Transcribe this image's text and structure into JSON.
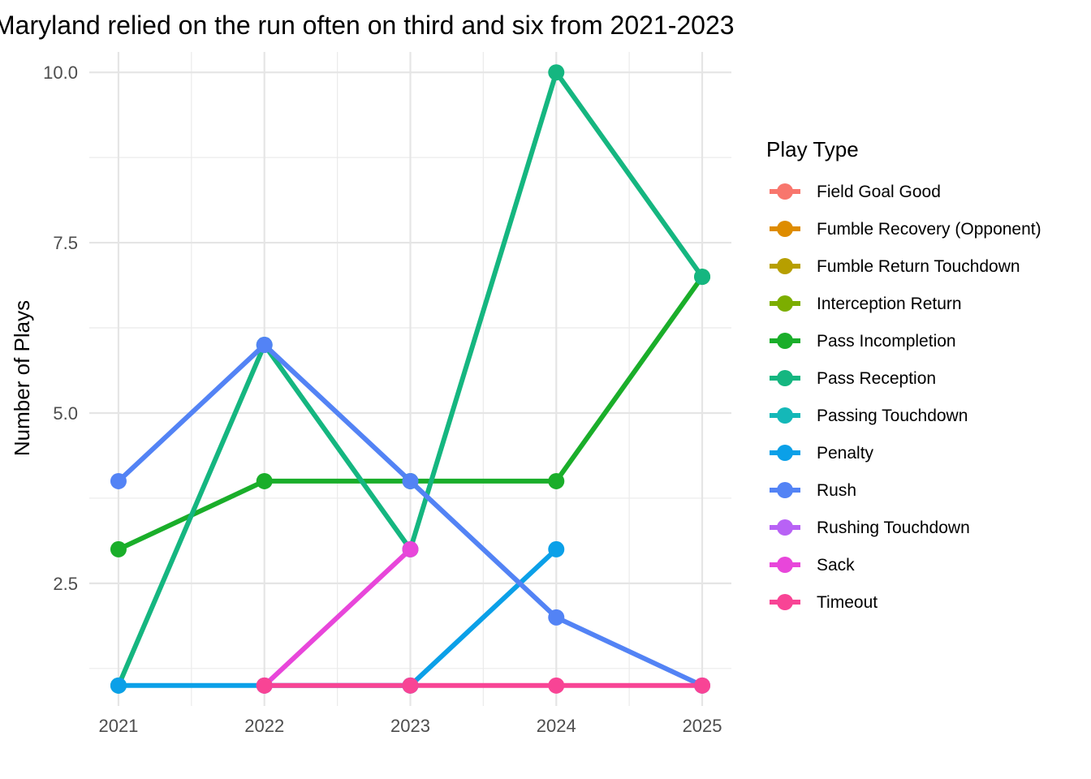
{
  "chart_data": {
    "type": "line",
    "title": "Maryland relied on the run often on third and six from 2021-2023",
    "xlabel": "",
    "ylabel": "Number of Plays",
    "x": [
      2021,
      2022,
      2023,
      2024,
      2025
    ],
    "x_tick_labels": [
      "2021",
      "2022",
      "2023",
      "2024",
      "2025"
    ],
    "y_ticks": [
      2.5,
      5.0,
      7.5,
      10.0
    ],
    "y_tick_labels": [
      "2.5",
      "5.0",
      "7.5",
      "10.0"
    ],
    "ylim": [
      0.7,
      10.3
    ],
    "grid": true,
    "legend": {
      "title": "Play Type",
      "placement": "right",
      "entries": [
        {
          "name": "Field Goal Good",
          "color": "#F8766D"
        },
        {
          "name": "Fumble Recovery (Opponent)",
          "color": "#DE8C00"
        },
        {
          "name": "Fumble Return Touchdown",
          "color": "#B79F00"
        },
        {
          "name": "Interception Return",
          "color": "#7CAE00"
        },
        {
          "name": "Pass Incompletion",
          "color": "#1AAE2A"
        },
        {
          "name": "Pass Reception",
          "color": "#15B680"
        },
        {
          "name": "Passing Touchdown",
          "color": "#14B8B8"
        },
        {
          "name": "Penalty",
          "color": "#0BA0E8"
        },
        {
          "name": "Rush",
          "color": "#5383F5"
        },
        {
          "name": "Rushing Touchdown",
          "color": "#B862F5"
        },
        {
          "name": "Sack",
          "color": "#E846DA"
        },
        {
          "name": "Timeout",
          "color": "#F84495"
        }
      ]
    },
    "series": [
      {
        "name": "Pass Incompletion",
        "color": "#1AAE2A",
        "points": [
          [
            2021,
            3
          ],
          [
            2022,
            4
          ],
          [
            2023,
            4
          ],
          [
            2024,
            4
          ],
          [
            2025,
            7
          ]
        ]
      },
      {
        "name": "Pass Reception",
        "color": "#15B680",
        "points": [
          [
            2021,
            1
          ],
          [
            2022,
            6
          ],
          [
            2023,
            3
          ],
          [
            2024,
            10
          ],
          [
            2025,
            7
          ]
        ]
      },
      {
        "name": "Penalty",
        "color": "#0BA0E8",
        "points": [
          [
            2021,
            1
          ],
          [
            2022,
            1
          ],
          [
            2023,
            1
          ],
          [
            2024,
            3
          ]
        ]
      },
      {
        "name": "Rush",
        "color": "#5383F5",
        "points": [
          [
            2021,
            4
          ],
          [
            2022,
            6
          ],
          [
            2023,
            4
          ],
          [
            2024,
            2
          ],
          [
            2025,
            1
          ]
        ]
      },
      {
        "name": "Sack",
        "color": "#E846DA",
        "points": [
          [
            2022,
            1
          ],
          [
            2023,
            3
          ]
        ]
      },
      {
        "name": "Timeout",
        "color": "#F84495",
        "points": [
          [
            2022,
            1
          ],
          [
            2023,
            1
          ],
          [
            2024,
            1
          ],
          [
            2025,
            1
          ]
        ]
      }
    ]
  }
}
